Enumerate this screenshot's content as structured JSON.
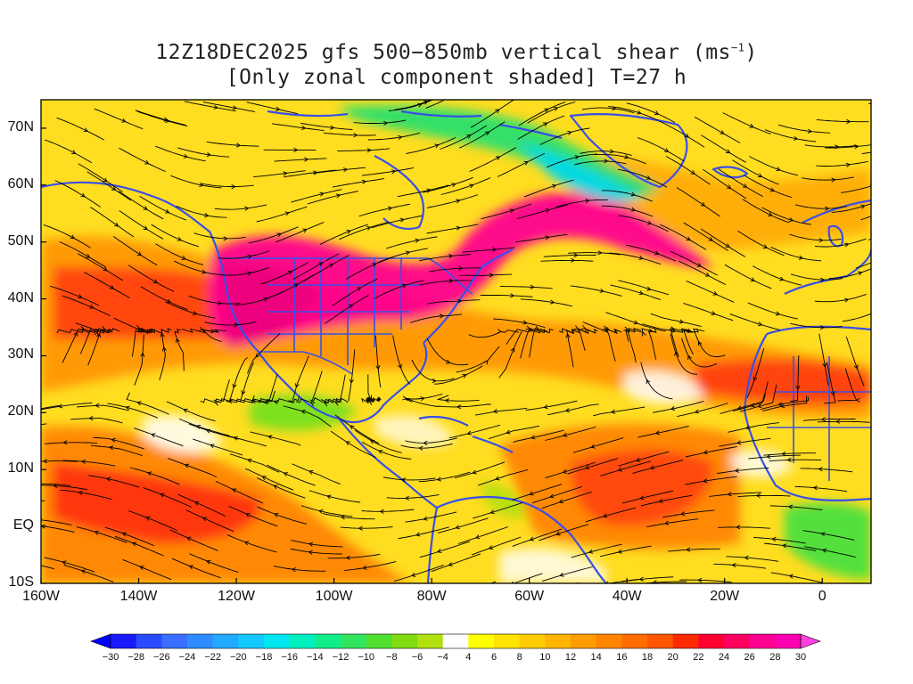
{
  "title": {
    "line1_prefix": "12Z18DEC2025 gfs 500−850mb vertical shear (ms",
    "line1_sup": "−1",
    "line1_suffix": ")",
    "line2": "[Only zonal component shaded] T=27 h"
  },
  "map": {
    "lon_range": [
      -160,
      10
    ],
    "lat_range": [
      -10,
      75
    ],
    "lat_labels": [
      {
        "text": "70N",
        "lat": 70
      },
      {
        "text": "60N",
        "lat": 60
      },
      {
        "text": "50N",
        "lat": 50
      },
      {
        "text": "40N",
        "lat": 40
      },
      {
        "text": "30N",
        "lat": 30
      },
      {
        "text": "20N",
        "lat": 20
      },
      {
        "text": "10N",
        "lat": 10
      },
      {
        "text": "EQ",
        "lat": 0
      },
      {
        "text": "10S",
        "lat": -10
      }
    ],
    "lon_labels": [
      {
        "text": "160W",
        "lon": -160
      },
      {
        "text": "140W",
        "lon": -140
      },
      {
        "text": "120W",
        "lon": -120
      },
      {
        "text": "100W",
        "lon": -100
      },
      {
        "text": "80W",
        "lon": -80
      },
      {
        "text": "60W",
        "lon": -60
      },
      {
        "text": "40W",
        "lon": -40
      },
      {
        "text": "20W",
        "lon": -20
      },
      {
        "text": "0",
        "lon": 0
      }
    ]
  },
  "colorbar": {
    "labels": [
      "−30",
      "−28",
      "−26",
      "−24",
      "−22",
      "−20",
      "−18",
      "−16",
      "−14",
      "−12",
      "−10",
      "−8",
      "−6",
      "−4",
      "4",
      "6",
      "8",
      "10",
      "12",
      "14",
      "16",
      "18",
      "20",
      "22",
      "24",
      "26",
      "28",
      "30"
    ],
    "colors": [
      "#1a1aff",
      "#2a4bff",
      "#3a6eff",
      "#2f8cff",
      "#21aaff",
      "#13c8ff",
      "#00e6f0",
      "#00f0c0",
      "#10ee8a",
      "#30e660",
      "#50e030",
      "#80dc10",
      "#b0e010",
      "#ffffff",
      "#ffff00",
      "#ffe400",
      "#ffcc00",
      "#ffb400",
      "#ff9c00",
      "#ff8400",
      "#ff6c00",
      "#ff5400",
      "#ff2a00",
      "#ff0030",
      "#ff0060",
      "#ff0090",
      "#ff00b0"
    ],
    "arrow_left": "#0000ff",
    "arrow_right": "#ff40e0"
  },
  "colors": {
    "coastline": "#3a4fe8",
    "streamline": "#000000"
  }
}
